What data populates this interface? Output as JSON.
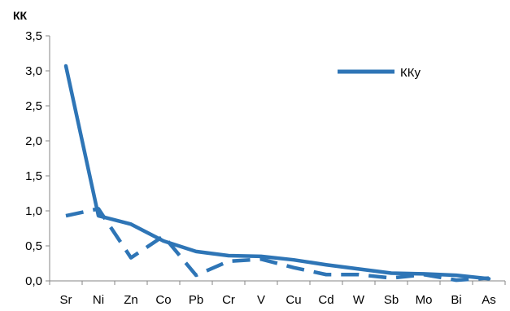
{
  "chart_data": {
    "type": "line",
    "title": "",
    "ylabel": "КК",
    "xlabel": "",
    "ylim": [
      0,
      3.5
    ],
    "yticks": [
      "0,0",
      "0,5",
      "1,0",
      "1,5",
      "2,0",
      "2,5",
      "3,0",
      "3,5"
    ],
    "categories": [
      "Sr",
      "Ni",
      "Zn",
      "Co",
      "Pb",
      "Cr",
      "V",
      "Cu",
      "Cd",
      "W",
      "Sb",
      "Mo",
      "Bi",
      "As"
    ],
    "grid": false,
    "legend_position": "top-right",
    "series": [
      {
        "name": "ККу",
        "style": "solid",
        "color": "#2e75b6",
        "values": [
          3.07,
          0.93,
          0.81,
          0.57,
          0.42,
          0.36,
          0.35,
          0.3,
          0.23,
          0.17,
          0.11,
          0.1,
          0.08,
          0.03
        ]
      },
      {
        "name": "",
        "style": "dashed",
        "color": "#2e75b6",
        "values": [
          0.93,
          1.03,
          0.33,
          0.64,
          0.08,
          0.28,
          0.31,
          0.19,
          0.09,
          0.09,
          0.04,
          0.09,
          0.01,
          0.04
        ]
      }
    ]
  }
}
